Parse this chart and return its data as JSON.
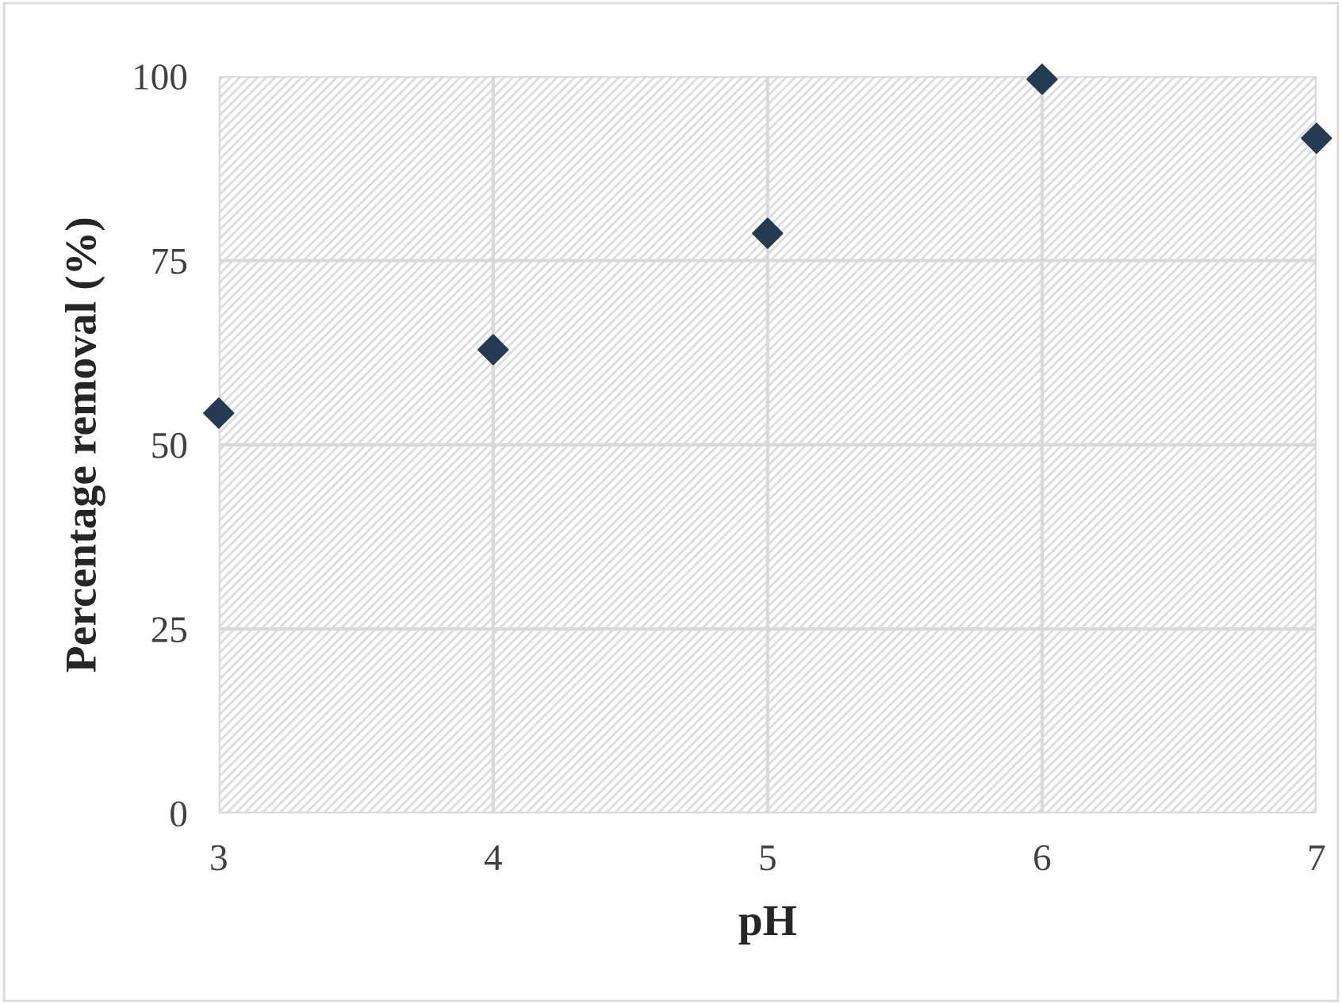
{
  "chart_data": {
    "type": "scatter",
    "xlabel": "pH",
    "ylabel": "Percentage removal (%)",
    "x": [
      3,
      4,
      5,
      6,
      7
    ],
    "series": [
      {
        "color": "#243b53",
        "values": [
          54.3,
          62.9,
          78.7,
          99.6,
          91.6
        ]
      }
    ],
    "xlim": [
      3,
      7
    ],
    "xticks": [
      3,
      4,
      5,
      6,
      7
    ],
    "ylim": [
      0,
      100
    ],
    "yticks": [
      0,
      25,
      50,
      75,
      100
    ],
    "grid": true,
    "marker": "diamond"
  }
}
